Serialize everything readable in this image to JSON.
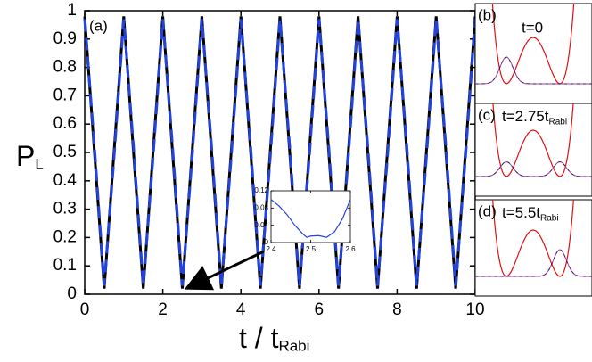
{
  "chart_data": [
    {
      "type": "line",
      "panel_label": "(a)",
      "ylabel": "P",
      "ylabel_sub": "L",
      "xlabel": "t / t",
      "xlabel_sub": "Rabi",
      "x": [
        0,
        0.25,
        0.5,
        0.75,
        1,
        1.25,
        1.5,
        1.75,
        2,
        2.25,
        2.5,
        2.75,
        3,
        3.25,
        3.5,
        3.75,
        4,
        4.25,
        4.5,
        4.75,
        5,
        5.25,
        5.5,
        5.75,
        6,
        6.25,
        6.5,
        6.75,
        7,
        7.25,
        7.5,
        7.75,
        8,
        8.25,
        8.5,
        8.75,
        9,
        9.25,
        9.5,
        9.75,
        10
      ],
      "series": [
        {
          "color": "#000000",
          "linestyle": "solid",
          "values": [
            0.98,
            0.5,
            0.02,
            0.5,
            0.98,
            0.5,
            0.02,
            0.5,
            0.98,
            0.5,
            0.02,
            0.5,
            0.98,
            0.5,
            0.02,
            0.5,
            0.98,
            0.5,
            0.02,
            0.5,
            0.98,
            0.5,
            0.02,
            0.5,
            0.98,
            0.5,
            0.02,
            0.5,
            0.98,
            0.5,
            0.02,
            0.5,
            0.98,
            0.5,
            0.02,
            0.5,
            0.98,
            0.5,
            0.02,
            0.5,
            0.98
          ]
        },
        {
          "color": "#2244dd",
          "linestyle": "dashed",
          "values": [
            0.97,
            0.52,
            0.03,
            0.48,
            0.97,
            0.52,
            0.03,
            0.48,
            0.97,
            0.52,
            0.03,
            0.48,
            0.97,
            0.52,
            0.03,
            0.48,
            0.97,
            0.52,
            0.03,
            0.48,
            0.97,
            0.52,
            0.03,
            0.48,
            0.97,
            0.52,
            0.03,
            0.48,
            0.97,
            0.52,
            0.03,
            0.48,
            0.97,
            0.52,
            0.03,
            0.48,
            0.97,
            0.52,
            0.03,
            0.48,
            0.97
          ]
        }
      ],
      "xlim": [
        0,
        10
      ],
      "xticks": [
        0,
        2,
        4,
        6,
        8,
        10
      ],
      "ylim": [
        0,
        1
      ],
      "yticks": [
        0,
        0.1,
        0.2,
        0.3,
        0.4,
        0.5,
        0.6,
        0.7,
        0.8,
        0.9,
        1
      ]
    },
    {
      "type": "line",
      "x": [
        2.4,
        2.42,
        2.44,
        2.46,
        2.48,
        2.49,
        2.5,
        2.52,
        2.54,
        2.56,
        2.58,
        2.6
      ],
      "series": [
        {
          "color": "#2244dd",
          "linestyle": "solid",
          "values": [
            0.1,
            0.085,
            0.065,
            0.04,
            0.02,
            0.012,
            0.015,
            0.016,
            0.012,
            0.025,
            0.055,
            0.1
          ]
        }
      ],
      "xlim": [
        2.4,
        2.6
      ],
      "xticks": [
        2.4,
        2.5,
        2.6
      ],
      "ylim": [
        0,
        0.12
      ],
      "yticks": [
        0,
        0.04,
        0.08,
        0.12
      ]
    }
  ],
  "panels": [
    {
      "label": "(b)",
      "time": "t=0"
    },
    {
      "label": "(c)",
      "time": "t=2.75t",
      "time_sub": "Rabi"
    },
    {
      "label": "(d)",
      "time": "t=5.5t",
      "time_sub": "Rabi"
    }
  ]
}
